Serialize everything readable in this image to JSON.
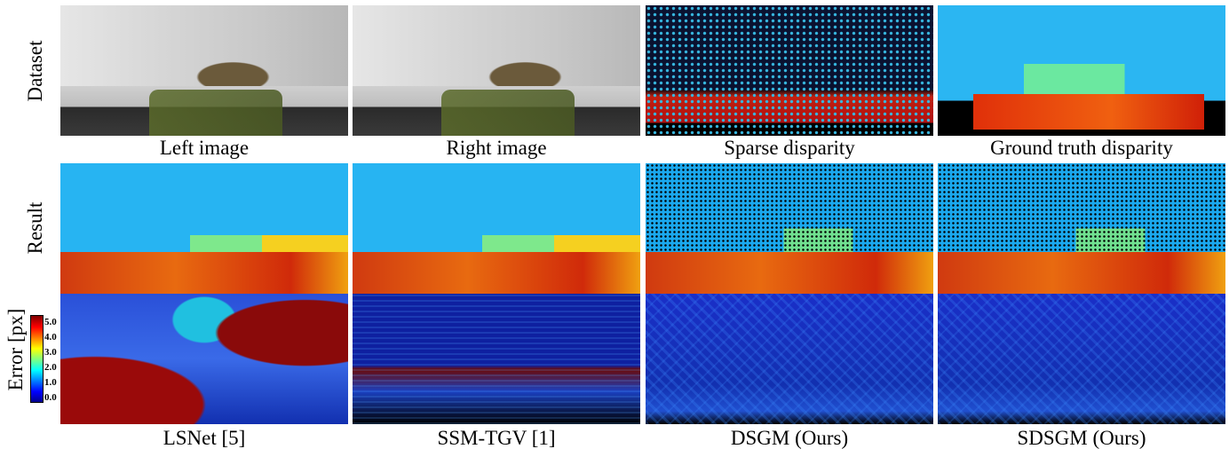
{
  "row_labels": [
    "Dataset",
    "Result",
    "Error [px]"
  ],
  "captions": {
    "dataset": [
      "Left image",
      "Right image",
      "Sparse disparity",
      "Ground truth disparity"
    ],
    "methods": [
      "LSNet [5]",
      "SSM-TGV [1]",
      "DSGM (Ours)",
      "SDSGM (Ours)"
    ]
  },
  "colorbar": {
    "ticks": [
      "5.0",
      "4.0",
      "3.0",
      "2.0",
      "1.0",
      "0.0"
    ]
  }
}
